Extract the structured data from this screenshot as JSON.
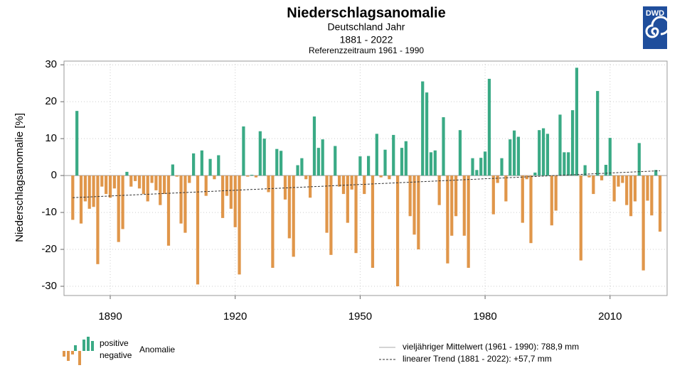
{
  "chart_data": {
    "type": "bar",
    "title": "Niederschlagsanomalie",
    "subtitle": "Deutschland Jahr",
    "period": "1881 - 2022",
    "reference": "Referenzzeitraum 1961 - 1990",
    "logo": "DWD",
    "ylabel": "Niederschlagsanomalie [%]",
    "x": [
      1881,
      1882,
      1883,
      1884,
      1885,
      1886,
      1887,
      1888,
      1889,
      1890,
      1891,
      1892,
      1893,
      1894,
      1895,
      1896,
      1897,
      1898,
      1899,
      1900,
      1901,
      1902,
      1903,
      1904,
      1905,
      1906,
      1907,
      1908,
      1909,
      1910,
      1911,
      1912,
      1913,
      1914,
      1915,
      1916,
      1917,
      1918,
      1919,
      1920,
      1921,
      1922,
      1923,
      1924,
      1925,
      1926,
      1927,
      1928,
      1929,
      1930,
      1931,
      1932,
      1933,
      1934,
      1935,
      1936,
      1937,
      1938,
      1939,
      1940,
      1941,
      1942,
      1943,
      1944,
      1945,
      1946,
      1947,
      1948,
      1949,
      1950,
      1951,
      1952,
      1953,
      1954,
      1955,
      1956,
      1957,
      1958,
      1959,
      1960,
      1961,
      1962,
      1963,
      1964,
      1965,
      1966,
      1967,
      1968,
      1969,
      1970,
      1971,
      1972,
      1973,
      1974,
      1975,
      1976,
      1977,
      1978,
      1979,
      1980,
      1981,
      1982,
      1983,
      1984,
      1985,
      1986,
      1987,
      1988,
      1989,
      1990,
      1991,
      1992,
      1993,
      1994,
      1995,
      1996,
      1997,
      1998,
      1999,
      2000,
      2001,
      2002,
      2003,
      2004,
      2005,
      2006,
      2007,
      2008,
      2009,
      2010,
      2011,
      2012,
      2013,
      2014,
      2015,
      2016,
      2017,
      2018,
      2019,
      2020,
      2021,
      2022
    ],
    "values": [
      -12,
      17.5,
      -13,
      -7,
      -9,
      -8.5,
      -24,
      -3,
      -5,
      -6,
      -3.5,
      -18,
      -14.5,
      1,
      -3,
      -1.5,
      -3.5,
      -5,
      -7,
      -2,
      -4,
      -8,
      -5,
      -19,
      3,
      -0.3,
      -13,
      -15.5,
      -2,
      6,
      -29.5,
      6.8,
      -5.5,
      4.5,
      -1,
      5.5,
      -11.5,
      -5.5,
      -9,
      -14,
      -26.8,
      13.3,
      -0.3,
      0.2,
      -0.5,
      12,
      10,
      -4.5,
      -25,
      7.2,
      6.7,
      -6.5,
      -17,
      -22,
      2.8,
      4.7,
      -1,
      -6,
      16,
      7.5,
      9.8,
      -15.5,
      -21.5,
      8,
      -3,
      -5,
      -12.8,
      -3.8,
      -21,
      5.2,
      -5,
      5.3,
      -25,
      11.3,
      -0.5,
      7,
      -1,
      11,
      -30,
      7.5,
      9.3,
      -11,
      -16,
      -20,
      25.5,
      22.5,
      6.3,
      6.8,
      -8,
      15.8,
      -23.8,
      -16.3,
      -11,
      12.3,
      -16.3,
      -25,
      4.7,
      1.5,
      4.8,
      6.5,
      26.2,
      -10.5,
      -2,
      4.7,
      -7,
      9.8,
      12.2,
      10.5,
      -12.8,
      -1,
      -18.3,
      0.8,
      12.3,
      12.8,
      11.3,
      -13.5,
      -9.5,
      16.5,
      6.3,
      6.3,
      17.7,
      29.2,
      -23,
      2.8,
      -0.5,
      -5,
      22.9,
      -1.3,
      2.9,
      10.2,
      -7,
      -3,
      -2,
      -8,
      -11,
      -7,
      8.8,
      -25.7,
      -6.8,
      -10.8,
      1.5,
      -15.2
    ],
    "positive_color": "#3aaa85",
    "negative_color": "#e0964a",
    "trend": {
      "x": [
        1881,
        2022
      ],
      "values": [
        -6,
        1.3
      ]
    },
    "xlim": [
      1878.9,
      2023.7
    ],
    "ylim": [
      -32.5,
      31
    ],
    "xticks": [
      1890,
      1920,
      1950,
      1980,
      2010
    ],
    "yticks": [
      -30,
      -20,
      -10,
      0,
      10,
      20,
      30
    ],
    "grid": true,
    "legend": {
      "positive": "positive",
      "negative": "negative",
      "label": "Anomalie",
      "mean": "vieljähriger Mittelwert (1961 - 1990): 788,9 mm",
      "trend": "linearer Trend (1881 - 2022): +57,7 mm"
    }
  }
}
